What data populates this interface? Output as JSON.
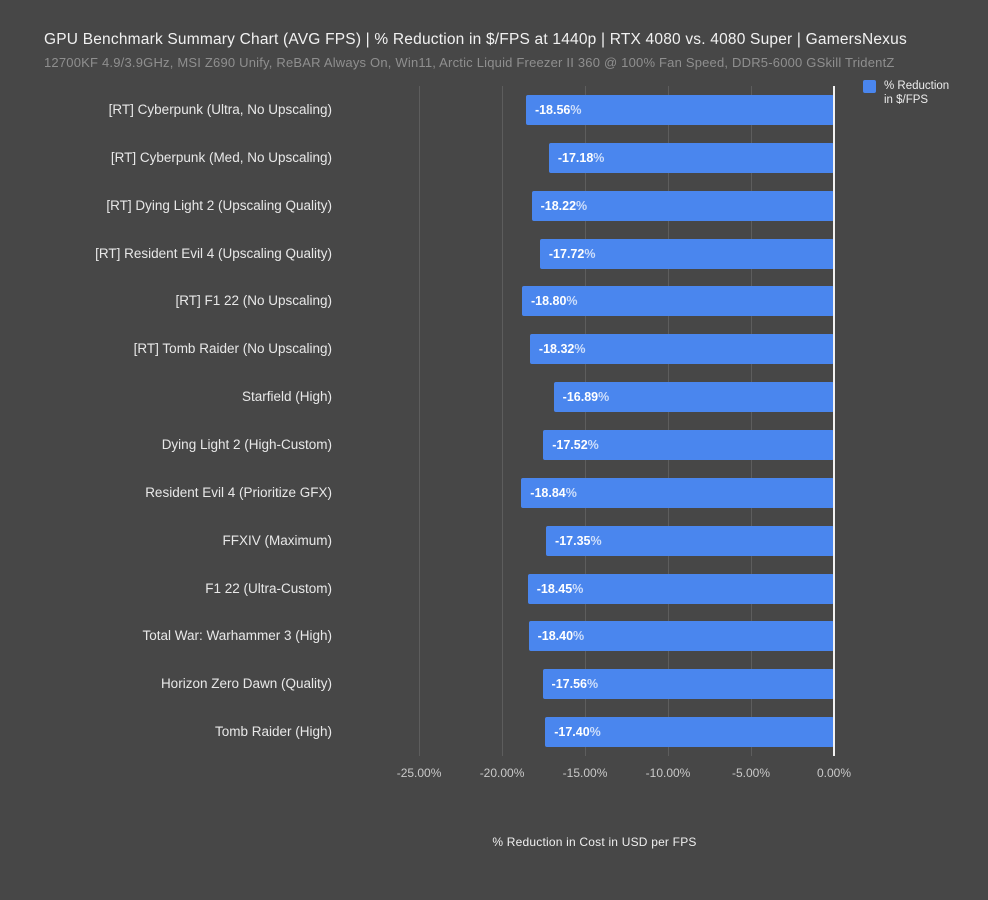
{
  "page": {
    "background": "#474747"
  },
  "chart_data": {
    "type": "bar",
    "orientation": "horizontal",
    "title": "GPU Benchmark Summary Chart (AVG FPS) | % Reduction in $/FPS at 1440p | RTX 4080 vs. 4080 Super | GamersNexus",
    "subtitle": "12700KF 4.9/3.9GHz, MSI Z690 Unify, ReBAR Always On, Win11, Arctic Liquid Freezer II 360 @ 100% Fan Speed, DDR5-6000 GSkill TridentZ",
    "legend": {
      "position": "top-right",
      "lines": [
        "% Reduction",
        "in $/FPS"
      ],
      "label": "% Reduction in $/FPS",
      "swatch_color": "#4a86ee"
    },
    "categories": [
      "[RT] Cyberpunk (Ultra, No Upscaling)",
      "[RT] Cyberpunk (Med, No Upscaling)",
      "[RT] Dying Light 2 (Upscaling Quality)",
      "[RT] Resident Evil 4 (Upscaling Quality)",
      "[RT] F1 22 (No Upscaling)",
      "[RT] Tomb Raider (No Upscaling)",
      "Starfield (High)",
      "Dying Light 2 (High-Custom)",
      "Resident Evil 4 (Prioritize GFX)",
      "FFXIV (Maximum)",
      "F1 22 (Ultra-Custom)",
      "Total War: Warhammer 3 (High)",
      "Horizon Zero Dawn (Quality)",
      "Tomb Raider (High)"
    ],
    "values": [
      -18.56,
      -17.18,
      -18.22,
      -17.72,
      -18.8,
      -18.32,
      -16.89,
      -17.52,
      -18.84,
      -17.35,
      -18.45,
      -18.4,
      -17.56,
      -17.4
    ],
    "value_labels": [
      "-18.56%",
      "-17.18%",
      "-18.22%",
      "-17.72%",
      "-18.80%",
      "-18.32%",
      "-16.89%",
      "-17.52%",
      "-18.84%",
      "-17.35%",
      "-18.45%",
      "-18.40%",
      "-17.56%",
      "-17.40%"
    ],
    "xlabel": "% Reduction in Cost in USD per FPS",
    "xlim": [
      -28.86,
      0
    ],
    "xticks": [
      -25,
      -20,
      -15,
      -10,
      -5,
      0
    ],
    "xtick_labels": [
      "-25.00%",
      "-20.00%",
      "-15.00%",
      "-10.00%",
      "-5.00%",
      "0.00%"
    ],
    "grid": true,
    "colors": {
      "background": "#474747",
      "bar": "#4a86ee",
      "gridline": "#5d5d5d",
      "zero_line": "#f2f2f2",
      "title": "#f1f1f1",
      "subtitle": "#8f8f8f",
      "category_label": "#e8e8e8",
      "tick_label": "#c9c9c9",
      "bar_value_label": "#ffffff"
    }
  }
}
